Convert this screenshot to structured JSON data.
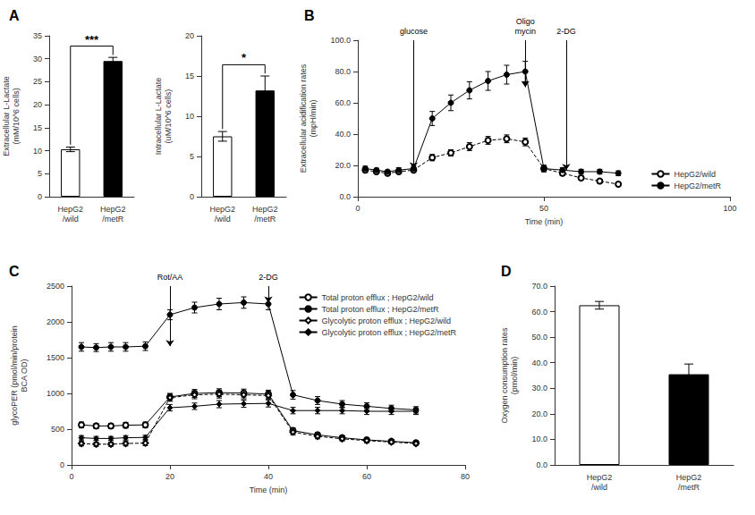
{
  "chart_data": [
    {
      "type": "bar",
      "title": "A",
      "categories": [
        "HepG2\n/wild",
        "HepG2\n/metR"
      ],
      "values": [
        10.3,
        29.5
      ],
      "errors": [
        0.5,
        0.8
      ],
      "colors": [
        "white",
        "black"
      ],
      "ylabel": "Extracellular L-Lactate\n(mM/10^6 cells)",
      "ylim": [
        0,
        35
      ],
      "yticks": [
        0,
        5,
        10,
        15,
        20,
        25,
        30,
        35
      ],
      "annotations": [
        {
          "text": "***"
        }
      ],
      "grid": false
    },
    {
      "type": "bar",
      "categories": [
        "HepG2\n/wild",
        "HepG2\n/metR"
      ],
      "values": [
        7.5,
        13.2
      ],
      "errors": [
        0.6,
        1.8
      ],
      "colors": [
        "white",
        "black"
      ],
      "ylabel": "Intracellular L-Lactate\n(uM/10^6 cells)",
      "ylim": [
        0,
        20
      ],
      "yticks": [
        0,
        5,
        10,
        15,
        20
      ],
      "annotations": [
        {
          "text": "*"
        }
      ],
      "grid": false
    },
    {
      "type": "line",
      "title": "B",
      "x": [
        2,
        5,
        8,
        11,
        15,
        20,
        25,
        30,
        35,
        40,
        45,
        50,
        55,
        60,
        65,
        70
      ],
      "series": [
        {
          "name": "HepG2/wild",
          "color": "black",
          "marker": "emptyCircle",
          "line_style": "dashed",
          "values": [
            17,
            16,
            15,
            16,
            17,
            25,
            28,
            32,
            36,
            37,
            35,
            18,
            15,
            12,
            10,
            8
          ],
          "errors": [
            1.5,
            1.2,
            1.0,
            1.2,
            1.2,
            2.0,
            2.0,
            2.5,
            2.5,
            2.5,
            2.5,
            2.0,
            1.5,
            1.2,
            1.0,
            1.0
          ]
        },
        {
          "name": "HepG2/metR",
          "color": "black",
          "marker": "circle",
          "line_style": "solid",
          "values": [
            18,
            17,
            16,
            17,
            18,
            50,
            60,
            68,
            74,
            78,
            80,
            18,
            17,
            16,
            16,
            15
          ],
          "errors": [
            1.5,
            1.2,
            1.0,
            1.5,
            1.5,
            4.5,
            5.0,
            5.5,
            6.0,
            6.0,
            6.5,
            2.0,
            1.5,
            1.5,
            1.5,
            1.5
          ]
        }
      ],
      "annotations": [
        {
          "text": "glucose",
          "x": 15,
          "y": 18
        },
        {
          "text": "Oligo\nmycin",
          "x": 45,
          "y": 70
        },
        {
          "text": "2-DG",
          "x": 56,
          "y": 17
        }
      ],
      "xlabel": "Time (min)",
      "ylabel": "Extracellular acidification rates\n(mpH/min)",
      "xlim": [
        0,
        100
      ],
      "xticks": [
        0,
        50,
        100
      ],
      "ylim": [
        0,
        100
      ],
      "yticks": [
        {
          "value": 0,
          "label": "0.0"
        },
        {
          "value": 20,
          "label": "20.0"
        },
        {
          "value": 40,
          "label": "40.0"
        },
        {
          "value": 60,
          "label": "60.0"
        },
        {
          "value": 80,
          "label": "80.0"
        },
        {
          "value": 100,
          "label": "100.0"
        }
      ],
      "legend": "lower right",
      "grid": false
    },
    {
      "type": "line",
      "title": "C",
      "x": [
        2,
        5,
        8,
        11,
        15,
        20,
        25,
        30,
        35,
        40,
        45,
        50,
        55,
        60,
        65,
        70
      ],
      "series": [
        {
          "name": "Total proton efflux ; HepG2/wild",
          "color": "black",
          "marker": "emptyCircle",
          "line_style": "solid",
          "values": [
            560,
            545,
            545,
            555,
            560,
            950,
            1000,
            1010,
            1005,
            990,
            480,
            420,
            380,
            350,
            330,
            310
          ],
          "errors": [
            40,
            35,
            35,
            40,
            40,
            50,
            55,
            55,
            55,
            55,
            40,
            35,
            30,
            30,
            25,
            25
          ]
        },
        {
          "name": "Total proton efflux ; HepG2/metR",
          "color": "black",
          "marker": "circle",
          "line_style": "solid",
          "values": [
            1650,
            1640,
            1650,
            1650,
            1660,
            2100,
            2200,
            2250,
            2270,
            2250,
            980,
            900,
            850,
            820,
            790,
            770
          ],
          "errors": [
            60,
            55,
            60,
            60,
            60,
            70,
            75,
            80,
            80,
            80,
            60,
            55,
            50,
            50,
            45,
            45
          ]
        },
        {
          "name": "Glycolytic proton efflux ; HepG2/wild",
          "color": "black",
          "marker": "emptyDiamond",
          "line_style": "dashed",
          "values": [
            300,
            290,
            290,
            300,
            305,
            940,
            980,
            990,
            980,
            970,
            460,
            400,
            365,
            340,
            320,
            300
          ],
          "errors": [
            35,
            30,
            30,
            35,
            35,
            50,
            55,
            55,
            55,
            55,
            40,
            35,
            30,
            30,
            25,
            25
          ]
        },
        {
          "name": "Glycolytic proton efflux ; HepG2/metR",
          "color": "black",
          "marker": "diamond",
          "line_style": "solid",
          "values": [
            380,
            370,
            370,
            380,
            385,
            800,
            820,
            850,
            855,
            860,
            760,
            760,
            760,
            750,
            750,
            750
          ],
          "errors": [
            30,
            28,
            28,
            30,
            30,
            45,
            45,
            50,
            50,
            50,
            45,
            45,
            45,
            45,
            45,
            45
          ]
        }
      ],
      "annotations": [
        {
          "text": "Rot/AA",
          "x": 20,
          "y": 1660
        },
        {
          "text": "2-DG",
          "x": 40,
          "y": 2270
        }
      ],
      "xlabel": "Time (min)",
      "ylabel": "glycoPER (pmol/min/protein\nBCA OD)",
      "xlim": [
        0,
        80
      ],
      "xticks": [
        0,
        20,
        40,
        60,
        80
      ],
      "ylim": [
        0,
        2500
      ],
      "yticks": [
        0,
        500,
        1000,
        1500,
        2000,
        2500
      ],
      "legend": "upper right",
      "grid": false
    },
    {
      "type": "bar",
      "title": "D",
      "categories": [
        "HepG2\n/wild",
        "HepG2\n/metR"
      ],
      "values": [
        62.5,
        35.5
      ],
      "errors": [
        1.5,
        4.0
      ],
      "colors": [
        "white",
        "black"
      ],
      "ylabel": "Oxygen consumption rates\n(pmol/min)",
      "ylim": [
        0,
        70
      ],
      "yticks": [
        {
          "value": 0,
          "label": "0.0"
        },
        {
          "value": 10,
          "label": "10.0"
        },
        {
          "value": 20,
          "label": "20.0"
        },
        {
          "value": 30,
          "label": "30.0"
        },
        {
          "value": 40,
          "label": "40.0"
        },
        {
          "value": 50,
          "label": "50.0"
        },
        {
          "value": 60,
          "label": "60.0"
        },
        {
          "value": 70,
          "label": "70.0"
        }
      ],
      "grid": false
    }
  ]
}
